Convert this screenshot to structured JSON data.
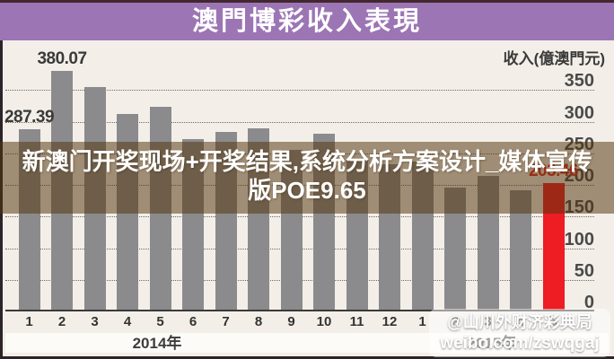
{
  "title_bar": {
    "text": "澳門博彩收入表現"
  },
  "chart_data": {
    "type": "bar",
    "title": "澳門博彩收入表現",
    "ylabel": "收入(億澳門元)",
    "y_ticks": [
      350,
      300,
      250,
      200,
      150,
      100,
      50,
      0
    ],
    "ylim": [
      0,
      415
    ],
    "grid": "horizontal-dotted",
    "legend": "none",
    "categories": [
      "1",
      "2",
      "3",
      "4",
      "5",
      "6",
      "7",
      "8",
      "9",
      "10",
      "11",
      "12",
      "1",
      "2",
      "3",
      "4",
      "5"
    ],
    "series": [
      {
        "name": "收入(億澳門元)",
        "values": [
          287.39,
          380.07,
          354.53,
          311.79,
          323.54,
          272.15,
          284.16,
          288.77,
          255.64,
          280.25,
          242.69,
          232.86,
          237.48,
          195.42,
          214.52,
          192.17,
          203.46
        ]
      }
    ],
    "group_labels": [
      {
        "label": "2014年",
        "from": 0,
        "to": 11
      },
      {
        "label": "2015年",
        "from": 12,
        "to": 16
      }
    ],
    "bar_color": "#8b8b8d",
    "highlight": {
      "index": 16,
      "color": "#ee1c23"
    },
    "value_labels": [
      {
        "index": 0,
        "text": "287.39",
        "color": "#3a3a3a"
      },
      {
        "index": 1,
        "text": "380.07",
        "color": "#3a3a3a"
      },
      {
        "index": 16,
        "text": "203.46",
        "color": "#e8281c"
      }
    ]
  },
  "banner_overlay": {
    "line1": "新澳门开奖现场+开奖结果,系统分析方案设计_媒体宣传",
    "line2": "版POE9.65"
  },
  "watermark": {
    "line1": "@山川外财济彩典局",
    "line2": "weibo.com/zswqgaj"
  },
  "colors": {
    "title_bg": "#9c75b4",
    "page_bg": "#f3efe8",
    "bar": "#8b8b8d",
    "highlight_bar": "#ee1c23",
    "banner": "rgba(82,52,12,0.52)"
  }
}
